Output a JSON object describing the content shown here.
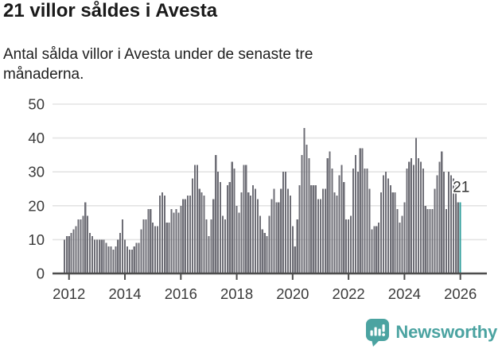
{
  "header": {
    "title": "21 villor såldes i Avesta",
    "subtitle": "Antal sålda villor i Avesta under de senaste tre månaderna."
  },
  "chart_data": {
    "type": "bar",
    "start_month": "2011-11",
    "end_month": "2026-01",
    "frequency": "monthly",
    "values": [
      10,
      11,
      11,
      12,
      13,
      14,
      16,
      16,
      17,
      21,
      17,
      12,
      11,
      10,
      10,
      10,
      10,
      10,
      9,
      8,
      8,
      7,
      8,
      10,
      12,
      16,
      10,
      8,
      7,
      7,
      8,
      9,
      9,
      13,
      16,
      16,
      19,
      19,
      15,
      14,
      14,
      23,
      24,
      23,
      15,
      15,
      19,
      18,
      19,
      18,
      20,
      22,
      22,
      23,
      23,
      28,
      32,
      32,
      25,
      24,
      23,
      16,
      11,
      16,
      22,
      35,
      30,
      27,
      17,
      16,
      26,
      27,
      33,
      31,
      20,
      18,
      24,
      32,
      32,
      24,
      23,
      26,
      25,
      22,
      17,
      13,
      12,
      11,
      17,
      22,
      25,
      21,
      21,
      25,
      30,
      30,
      25,
      23,
      14,
      8,
      16,
      26,
      35,
      43,
      38,
      34,
      26,
      26,
      26,
      22,
      22,
      25,
      25,
      34,
      36,
      31,
      24,
      23,
      29,
      32,
      27,
      16,
      16,
      17,
      31,
      35,
      30,
      37,
      37,
      31,
      31,
      25,
      13,
      14,
      14,
      15,
      24,
      29,
      30,
      28,
      26,
      24,
      24,
      19,
      15,
      17,
      21,
      31,
      33,
      34,
      32,
      40,
      34,
      33,
      31,
      20,
      19,
      19,
      19,
      25,
      29,
      33,
      36,
      30,
      19,
      30,
      29,
      28,
      26,
      21,
      21
    ],
    "highlight": {
      "index": 170,
      "value": 21,
      "label": "21",
      "color": "#2f9e9b"
    },
    "y_ticks": [
      0,
      10,
      20,
      30,
      40,
      50
    ],
    "ylim": [
      0,
      50
    ],
    "x_tick_labels": [
      "2012",
      "2014",
      "2016",
      "2018",
      "2020",
      "2022",
      "2024",
      "2026"
    ],
    "grid": true,
    "colors": {
      "bar": "#6e6e76",
      "highlight": "#2f9e9b",
      "grid": "#e4e4e4",
      "axis": "#4d4d4d",
      "tick_label": "#3a3a3a",
      "annotation": "#333333"
    }
  },
  "footer": {
    "brand": "Newsworthy",
    "brand_color": "#4ba3a1",
    "logo_icon": "bar-chart-speech-bubble"
  }
}
